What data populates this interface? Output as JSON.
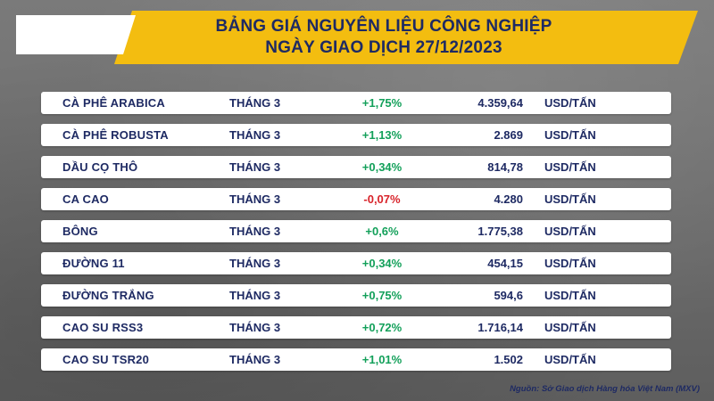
{
  "header": {
    "title_line1": "BẢNG GIÁ NGUYÊN LIỆU CÔNG NGHIỆP",
    "title_line2": "NGÀY GIAO DỊCH 27/12/2023"
  },
  "colors": {
    "banner": "#f3bd10",
    "text": "#1e2a63",
    "positive": "#13a05a",
    "negative": "#d8232a"
  },
  "rows": [
    {
      "name": "CÀ PHÊ ARABICA",
      "month": "THÁNG 3",
      "change": "+1,75%",
      "price": "4.359,64",
      "unit": "USD/TẤN",
      "dir": "pos"
    },
    {
      "name": "CÀ PHÊ ROBUSTA",
      "month": "THÁNG 3",
      "change": "+1,13%",
      "price": "2.869",
      "unit": "USD/TẤN",
      "dir": "pos"
    },
    {
      "name": "DẦU CỌ THÔ",
      "month": "THÁNG 3",
      "change": "+0,34%",
      "price": "814,78",
      "unit": "USD/TẤN",
      "dir": "pos"
    },
    {
      "name": "CA CAO",
      "month": "THÁNG 3",
      "change": "-0,07%",
      "price": "4.280",
      "unit": "USD/TẤN",
      "dir": "neg"
    },
    {
      "name": "BÔNG",
      "month": "THÁNG 3",
      "change": "+0,6%",
      "price": "1.775,38",
      "unit": "USD/TẤN",
      "dir": "pos"
    },
    {
      "name": "ĐƯỜNG 11",
      "month": "THÁNG 3",
      "change": "+0,34%",
      "price": "454,15",
      "unit": "USD/TẤN",
      "dir": "pos"
    },
    {
      "name": "ĐƯỜNG TRẮNG",
      "month": "THÁNG 3",
      "change": "+0,75%",
      "price": "594,6",
      "unit": "USD/TẤN",
      "dir": "pos"
    },
    {
      "name": "CAO SU RSS3",
      "month": "THÁNG 3",
      "change": "+0,72%",
      "price": "1.716,14",
      "unit": "USD/TẤN",
      "dir": "pos"
    },
    {
      "name": "CAO SU TSR20",
      "month": "THÁNG 3",
      "change": "+1,01%",
      "price": "1.502",
      "unit": "USD/TẤN",
      "dir": "pos"
    }
  ],
  "footer": {
    "source": "Nguồn: Sở Giao dịch Hàng hóa Việt Nam (MXV)"
  }
}
